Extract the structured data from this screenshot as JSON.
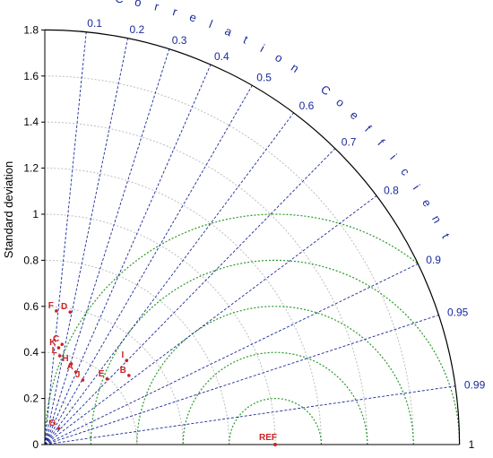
{
  "chart_data": {
    "type": "taylor",
    "ylabel": "Standard deviation",
    "correlation_label": "Correlation Coefficient",
    "std_ticks": [
      "0",
      "0.2",
      "0.4",
      "0.6",
      "0.8",
      "1",
      "1.2",
      "1.4",
      "1.6",
      "1.8"
    ],
    "std_max": 1.8,
    "std_grid_arcs": [
      0.2,
      0.4,
      0.6,
      0.8,
      1.0,
      1.2,
      1.4,
      1.6
    ],
    "correlation_ticks": [
      {
        "value": 0.1,
        "label": "0.1"
      },
      {
        "value": 0.2,
        "label": "0.2"
      },
      {
        "value": 0.3,
        "label": "0.3"
      },
      {
        "value": 0.4,
        "label": "0.4"
      },
      {
        "value": 0.5,
        "label": "0.5"
      },
      {
        "value": 0.6,
        "label": "0.6"
      },
      {
        "value": 0.7,
        "label": "0.7"
      },
      {
        "value": 0.8,
        "label": "0.8"
      },
      {
        "value": 0.9,
        "label": "0.9"
      },
      {
        "value": 0.95,
        "label": "0.95"
      },
      {
        "value": 0.99,
        "label": "0.99"
      },
      {
        "value": 1.0,
        "label": "1"
      }
    ],
    "reference": {
      "label": "REF",
      "std": 1.0
    },
    "rms_arcs": [
      0.2,
      0.4,
      0.6,
      0.8,
      1.0
    ],
    "points": [
      {
        "label": "A",
        "x": 0.135,
        "y": 0.315
      },
      {
        "label": "B",
        "x": 0.365,
        "y": 0.3
      },
      {
        "label": "C",
        "x": 0.075,
        "y": 0.435
      },
      {
        "label": "D",
        "x": 0.11,
        "y": 0.575
      },
      {
        "label": "E",
        "x": 0.27,
        "y": 0.285
      },
      {
        "label": "F",
        "x": 0.05,
        "y": 0.58
      },
      {
        "label": "G",
        "x": 0.06,
        "y": 0.07
      },
      {
        "label": "H",
        "x": 0.115,
        "y": 0.35
      },
      {
        "label": "I",
        "x": 0.355,
        "y": 0.365
      },
      {
        "label": "J",
        "x": 0.165,
        "y": 0.28
      },
      {
        "label": "K",
        "x": 0.06,
        "y": 0.42
      },
      {
        "label": "L",
        "x": 0.065,
        "y": 0.385
      }
    ],
    "colors": {
      "axis": "#000000",
      "std_grid": "#bdbdbd",
      "correlation_lines": "#1a2a9a",
      "correlation_text": "#1a2a9a",
      "rms_arcs": "#2a9a2a",
      "points": "#cc2222"
    }
  }
}
